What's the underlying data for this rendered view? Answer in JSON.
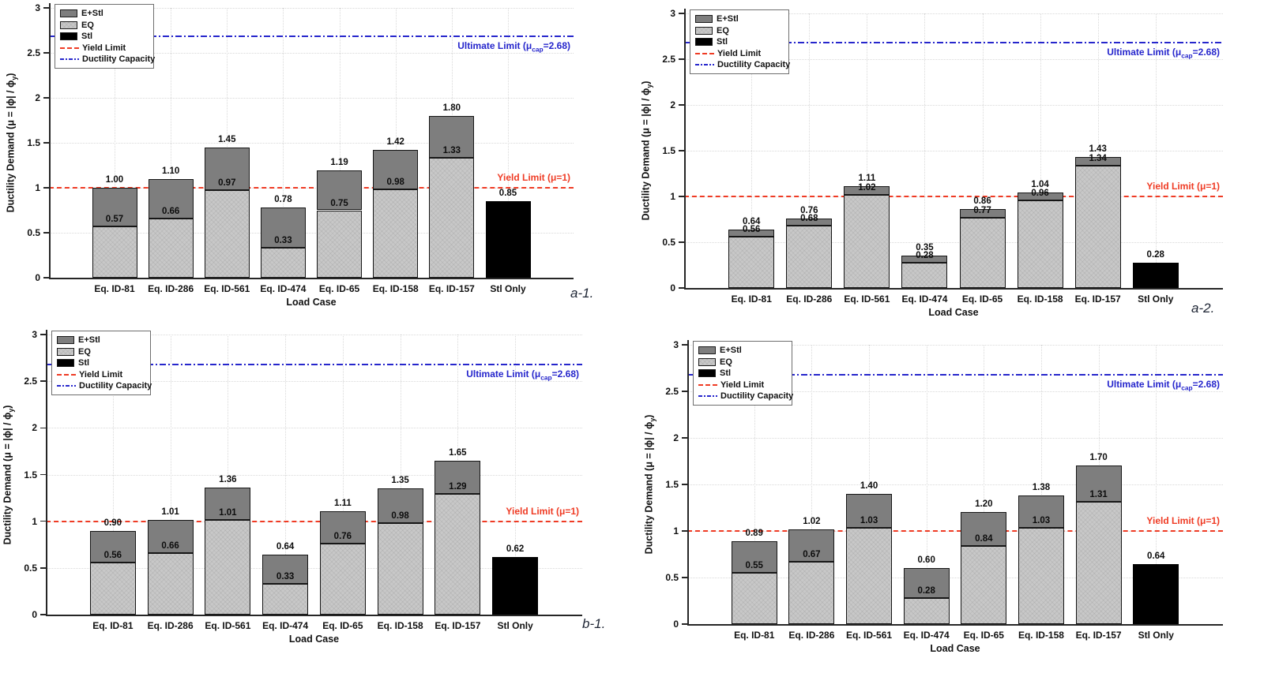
{
  "figure": {
    "background": "#ffffff"
  },
  "shared": {
    "xlabel": "Load Case",
    "ylabel": {
      "pre": "Ductility Demand (",
      "mu": "μ",
      "mid": " = |ϕ| / ϕ",
      "sub": "y",
      "post": ")"
    },
    "ylim": [
      0,
      3
    ],
    "yticks": [
      "0",
      "0.5",
      "1",
      "1.5",
      "2",
      "2.5",
      "3"
    ],
    "grid": "on",
    "legend_position": "top-left",
    "legend": [
      {
        "label": "E+Stl",
        "swatch": "estl-fill"
      },
      {
        "label": "EQ",
        "swatch": "eq-fill"
      },
      {
        "label": "Stl",
        "swatch": "stl-fill"
      },
      {
        "label": "Yield Limit",
        "swatch": "yield-dashed-line"
      },
      {
        "label": "Ductility Capacity",
        "swatch": "capacity-dashdot-line"
      }
    ],
    "yield_limit": {
      "value": 1,
      "label": "Yield Limit (μ=1)"
    },
    "ultimate_limit": {
      "value": 2.68,
      "label_pre": "Ultimate Limit (μ",
      "label_sub": "cap",
      "label_post": "=2.68)"
    },
    "colors": {
      "eq_fill": "#c8c8c8",
      "estl_fill": "#7e7e7e",
      "stl_fill": "#000000",
      "yield_line": "#ef3b24",
      "capacity_line": "#2626cc",
      "grid_line": "#d9d9d9",
      "axis_line": "#262626",
      "caption_text": "#1d2433"
    }
  },
  "chart_data": [
    {
      "id": "a-1",
      "type": "bar",
      "stacked": true,
      "caption": "a-1.",
      "categories": [
        "Eq. ID-81",
        "Eq. ID-286",
        "Eq. ID-561",
        "Eq. ID-474",
        "Eq. ID-65",
        "Eq. ID-158",
        "Eq. ID-157",
        "Stl Only"
      ],
      "eq_values": [
        0.57,
        0.66,
        0.97,
        0.33,
        0.75,
        0.98,
        1.33
      ],
      "totals": [
        1.0,
        1.1,
        1.45,
        0.78,
        1.19,
        1.42,
        1.8
      ],
      "stl_only": 0.85
    },
    {
      "id": "a-2",
      "type": "bar",
      "stacked": true,
      "caption": "a-2.",
      "categories": [
        "Eq. ID-81",
        "Eq. ID-286",
        "Eq. ID-561",
        "Eq. ID-474",
        "Eq. ID-65",
        "Eq. ID-158",
        "Eq. ID-157",
        "Stl Only"
      ],
      "eq_values": [
        0.56,
        0.68,
        1.02,
        0.28,
        0.77,
        0.96,
        1.34
      ],
      "totals": [
        0.64,
        0.76,
        1.11,
        0.35,
        0.86,
        1.04,
        1.43
      ],
      "stl_only": 0.28
    },
    {
      "id": "b-1",
      "type": "bar",
      "stacked": true,
      "caption": "b-1.",
      "categories": [
        "Eq. ID-81",
        "Eq. ID-286",
        "Eq. ID-561",
        "Eq. ID-474",
        "Eq. ID-65",
        "Eq. ID-158",
        "Eq. ID-157",
        "Stl Only"
      ],
      "eq_values": [
        0.56,
        0.66,
        1.01,
        0.33,
        0.76,
        0.98,
        1.29
      ],
      "totals": [
        0.9,
        1.01,
        1.36,
        0.64,
        1.11,
        1.35,
        1.65
      ],
      "stl_only": 0.62
    },
    {
      "id": "b-2",
      "type": "bar",
      "stacked": true,
      "caption": "",
      "categories": [
        "Eq. ID-81",
        "Eq. ID-286",
        "Eq. ID-561",
        "Eq. ID-474",
        "Eq. ID-65",
        "Eq. ID-158",
        "Eq. ID-157",
        "Stl Only"
      ],
      "eq_values": [
        0.55,
        0.67,
        1.03,
        0.28,
        0.84,
        1.03,
        1.31
      ],
      "totals": [
        0.89,
        1.02,
        1.4,
        0.6,
        1.2,
        1.38,
        1.7
      ],
      "stl_only": 0.64
    }
  ]
}
